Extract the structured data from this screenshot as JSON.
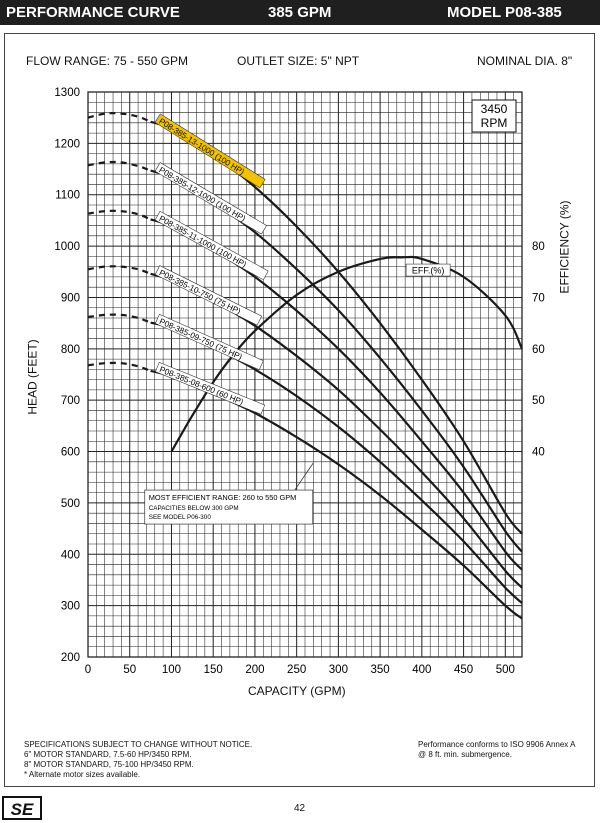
{
  "header": {
    "title": "PERFORMANCE CURVE",
    "flow": "385 GPM",
    "model": "MODEL  P08-385"
  },
  "specs": {
    "flow_range": "FLOW RANGE: 75 - 550 GPM",
    "outlet_size": "OUTLET SIZE: 5\" NPT",
    "nominal_dia": "NOMINAL DIA. 8\""
  },
  "chart_data": {
    "type": "line",
    "xlabel": "CAPACITY (GPM)",
    "ylabel": "HEAD (FEET)",
    "y2label": "EFFICIENCY (%)",
    "xlim": [
      0,
      520
    ],
    "ylim": [
      200,
      1300
    ],
    "y2lim": [
      0,
      110
    ],
    "x_ticks": [
      0,
      50,
      100,
      150,
      200,
      250,
      300,
      350,
      400,
      450,
      500
    ],
    "y_ticks": [
      200,
      300,
      400,
      500,
      600,
      700,
      800,
      900,
      1000,
      1100,
      1200,
      1300
    ],
    "y2_ticks": [
      40,
      50,
      60,
      70,
      80
    ],
    "grid": true,
    "speed_label": [
      "3450",
      "RPM"
    ],
    "series": [
      {
        "name": "P08-385-13-1000 (100 HP)",
        "highlight": true,
        "dashed": {
          "x": [
            0,
            20,
            40,
            60
          ],
          "y": [
            1250,
            1258,
            1258,
            1252
          ]
        },
        "x": [
          75,
          100,
          150,
          200,
          250,
          300,
          350,
          400,
          450,
          500,
          520
        ],
        "y": [
          1242,
          1228,
          1178,
          1115,
          1038,
          950,
          850,
          740,
          620,
          480,
          440
        ]
      },
      {
        "name": "P08-385-12-1000 (100 HP)",
        "dashed": {
          "x": [
            0,
            20,
            40,
            60
          ],
          "y": [
            1157,
            1163,
            1163,
            1156
          ]
        },
        "x": [
          75,
          100,
          150,
          200,
          250,
          300,
          350,
          400,
          450,
          500,
          520
        ],
        "y": [
          1147,
          1133,
          1085,
          1027,
          955,
          875,
          782,
          680,
          570,
          445,
          405
        ]
      },
      {
        "name": "P08-385-11-1000 (100 HP)",
        "dashed": {
          "x": [
            0,
            20,
            40,
            60
          ],
          "y": [
            1063,
            1068,
            1068,
            1062
          ]
        },
        "x": [
          75,
          100,
          150,
          200,
          250,
          300,
          350,
          400,
          450,
          500,
          520
        ],
        "y": [
          1052,
          1038,
          993,
          940,
          874,
          800,
          715,
          620,
          520,
          405,
          370
        ]
      },
      {
        "name": "P08-385-10-750 (75 HP)",
        "dashed": {
          "x": [
            0,
            20,
            40,
            60
          ],
          "y": [
            955,
            960,
            960,
            955
          ]
        },
        "x": [
          75,
          100,
          150,
          200,
          250,
          300,
          350,
          400,
          450,
          500,
          520
        ],
        "y": [
          946,
          933,
          893,
          845,
          786,
          720,
          643,
          560,
          470,
          368,
          335
        ]
      },
      {
        "name": "P08-385-09-750 (75 HP)",
        "dashed": {
          "x": [
            0,
            20,
            40,
            60
          ],
          "y": [
            862,
            866,
            866,
            860
          ]
        },
        "x": [
          75,
          100,
          150,
          200,
          250,
          300,
          350,
          400,
          450,
          500,
          520
        ],
        "y": [
          851,
          840,
          803,
          760,
          708,
          648,
          580,
          505,
          425,
          335,
          305
        ]
      },
      {
        "name": "P08-385-08-600 (60 HP)",
        "dashed": {
          "x": [
            0,
            20,
            40,
            60
          ],
          "y": [
            768,
            772,
            772,
            766
          ]
        },
        "x": [
          75,
          100,
          150,
          200,
          250,
          300,
          350,
          400,
          450,
          500,
          520
        ],
        "y": [
          757,
          746,
          713,
          675,
          628,
          575,
          515,
          448,
          378,
          300,
          275
        ]
      }
    ],
    "efficiency": {
      "name": "EFF.(%)",
      "x": [
        100,
        125,
        150,
        175,
        200,
        250,
        300,
        350,
        375,
        400,
        450,
        500,
        520
      ],
      "y": [
        40,
        47,
        53.5,
        59,
        63.5,
        70.5,
        75,
        77.5,
        77.8,
        77.5,
        74,
        66.5,
        60
      ]
    },
    "annotation": {
      "title": "MOST EFFICIENT RANGE: 260 to 550 GPM",
      "line2": "CAPACITIES BELOW 300 GPM",
      "line3": "SEE  MODEL  P06-300"
    }
  },
  "footer": {
    "left": [
      "SPECIFICATIONS SUBJECT TO CHANGE WITHOUT NOTICE.",
      "6\" MOTOR STANDARD, 7.5-60 HP/3450 RPM.",
      "8\" MOTOR STANDARD, 75-100 HP/3450 RPM.",
      "* Alternate motor sizes available."
    ],
    "right": [
      "Performance conforms to ISO 9906 Annex A",
      "@ 8 ft. min. submergence."
    ],
    "page_number": "42",
    "logo": "SE"
  },
  "colors": {
    "header_bg": "#1f1f1f",
    "highlight": "#f2c200",
    "curve": "#1a1a1a",
    "grid": "#222222"
  }
}
